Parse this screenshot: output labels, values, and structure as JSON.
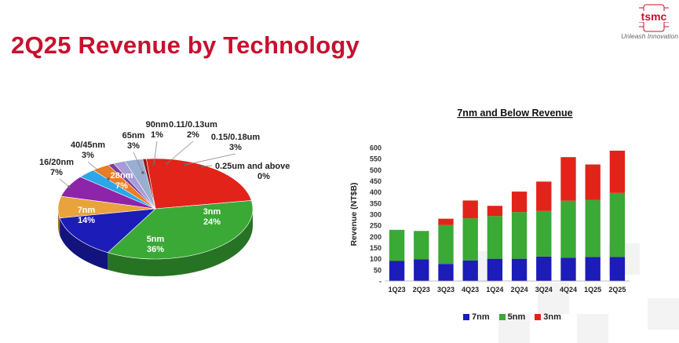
{
  "slide": {
    "title": "2Q25 Revenue by Technology",
    "logo_text": "tsmc",
    "tagline": "Unleash Innovation"
  },
  "colors": {
    "title_red": "#c8102e",
    "n3": "#e2231a",
    "n5": "#3aa935",
    "n7": "#1c1cb8",
    "n16": "#e8a33c",
    "n28": "#8e24aa",
    "n40": "#2ba6e8",
    "n65": "#ec7c22",
    "n90": "#7b3f99",
    "n011": "#a79bd8",
    "n015": "#9aaed0",
    "n025": "#8b1a1a"
  },
  "chart_data": [
    {
      "type": "pie",
      "slices": [
        {
          "label": "3nm",
          "value": 24,
          "value_label": "24%",
          "color": "#e2231a"
        },
        {
          "label": "5nm",
          "value": 36,
          "value_label": "36%",
          "color": "#3aa935"
        },
        {
          "label": "7nm",
          "value": 14,
          "value_label": "14%",
          "color": "#1c1cb8"
        },
        {
          "label": "16/20nm",
          "value": 7,
          "value_label": "7%",
          "color": "#e8a33c"
        },
        {
          "label": "28nm",
          "value": 7,
          "value_label": "7%",
          "color": "#8e24aa"
        },
        {
          "label": "40/45nm",
          "value": 3,
          "value_label": "3%",
          "color": "#2ba6e8"
        },
        {
          "label": "65nm",
          "value": 3,
          "value_label": "3%",
          "color": "#ec7c22"
        },
        {
          "label": "90nm",
          "value": 1,
          "value_label": "1%",
          "color": "#7b3f99"
        },
        {
          "label": "0.11/0.13um",
          "value": 2,
          "value_label": "2%",
          "color": "#a79bd8"
        },
        {
          "label": "0.15/0.18um",
          "value": 3,
          "value_label": "3%",
          "color": "#9aaed0"
        },
        {
          "label": "0.25um and above",
          "value": 0,
          "value_label": "0%",
          "color": "#8b1a1a"
        }
      ]
    },
    {
      "type": "bar",
      "stacked": true,
      "title": "7nm and Below Revenue",
      "ylabel": "Revenue (NT$B)",
      "ylim": [
        0,
        600
      ],
      "yticks": [
        0,
        50,
        100,
        150,
        200,
        250,
        300,
        350,
        400,
        450,
        500,
        550,
        600
      ],
      "ytick_labels": [
        "-",
        "50",
        "100",
        "150",
        "200",
        "250",
        "300",
        "350",
        "400",
        "450",
        "500",
        "550",
        "600"
      ],
      "categories": [
        "1Q23",
        "2Q23",
        "3Q23",
        "4Q23",
        "1Q24",
        "2Q24",
        "3Q24",
        "4Q24",
        "1Q25",
        "2Q25"
      ],
      "series": [
        {
          "name": "7nm",
          "color": "#1c1cb8",
          "values": [
            90,
            97,
            77,
            92,
            100,
            100,
            110,
            105,
            108,
            108
          ]
        },
        {
          "name": "5nm",
          "color": "#3aa935",
          "values": [
            140,
            128,
            175,
            190,
            192,
            210,
            205,
            256,
            256,
            288
          ]
        },
        {
          "name": "3nm",
          "color": "#e2231a",
          "values": [
            0,
            0,
            28,
            80,
            46,
            92,
            132,
            196,
            160,
            190
          ]
        }
      ],
      "legend_position": "bottom"
    }
  ]
}
